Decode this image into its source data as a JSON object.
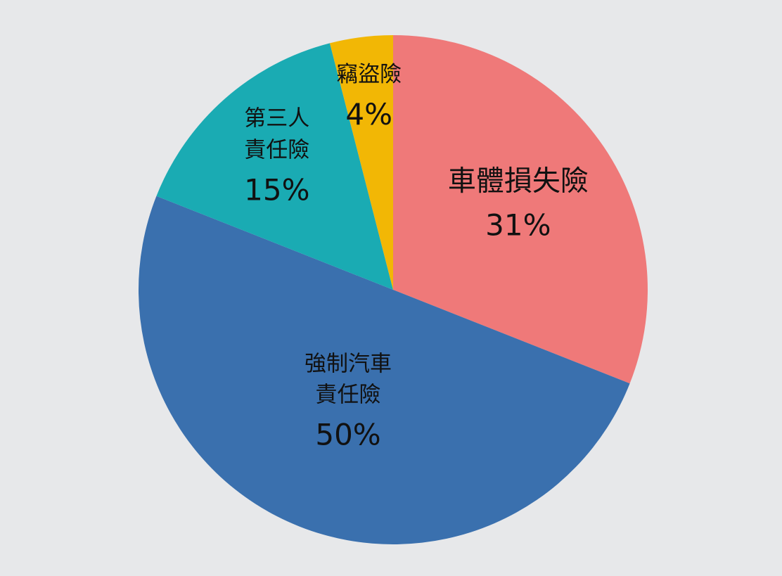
{
  "chart_data": {
    "type": "pie",
    "categories": [
      "車體損失險",
      "強制汽車\n責任險",
      "第三人\n責任險",
      "竊盜險"
    ],
    "values": [
      31,
      50,
      15,
      4
    ],
    "value_labels": [
      "31%",
      "50%",
      "15%",
      "4%"
    ],
    "colors": [
      "#EF7979",
      "#3A70AE",
      "#1AABB3",
      "#F2B705"
    ]
  }
}
